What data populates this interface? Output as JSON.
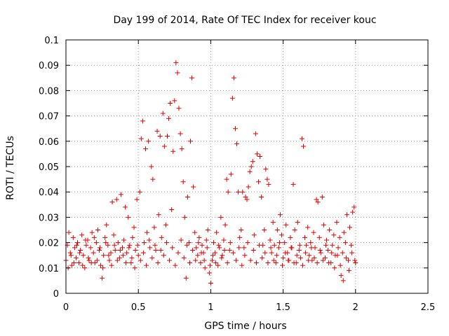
{
  "chart_data": {
    "type": "scatter",
    "title": "Day 199 of 2014, Rate Of TEC Index for receiver kouc",
    "xlabel": "GPS time / hours",
    "ylabel": "ROTI / TECUs",
    "xlim": [
      0,
      2.5
    ],
    "ylim": [
      0,
      0.1
    ],
    "x_ticks": [
      "0",
      "0.5",
      "1",
      "1.5",
      "2",
      "2.5"
    ],
    "y_ticks": [
      "0",
      "0.01",
      "0.02",
      "0.03",
      "0.04",
      "0.05",
      "0.06",
      "0.07",
      "0.08",
      "0.09",
      "0.1"
    ],
    "grid": true,
    "marker": "+",
    "color": "#e00000",
    "series": [
      {
        "points": [
          [
            0.0,
            0.013
          ],
          [
            0.01,
            0.019
          ],
          [
            0.02,
            0.024
          ],
          [
            0.03,
            0.016
          ],
          [
            0.04,
            0.011
          ],
          [
            0.05,
            0.022
          ],
          [
            0.06,
            0.018
          ],
          [
            0.07,
            0.014
          ],
          [
            0.08,
            0.02
          ],
          [
            0.09,
            0.012
          ],
          [
            0.1,
            0.017
          ],
          [
            0.11,
            0.023
          ],
          [
            0.12,
            0.015
          ],
          [
            0.13,
            0.01
          ],
          [
            0.14,
            0.019
          ],
          [
            0.15,
            0.021
          ],
          [
            0.16,
            0.013
          ],
          [
            0.17,
            0.018
          ],
          [
            0.18,
            0.024
          ],
          [
            0.19,
            0.016
          ],
          [
            0.2,
            0.012
          ],
          [
            0.21,
            0.02
          ],
          [
            0.22,
            0.025
          ],
          [
            0.23,
            0.017
          ],
          [
            0.24,
            0.011
          ],
          [
            0.25,
            0.006
          ],
          [
            0.26,
            0.015
          ],
          [
            0.27,
            0.022
          ],
          [
            0.28,
            0.027
          ],
          [
            0.29,
            0.019
          ],
          [
            0.3,
            0.013
          ],
          [
            0.31,
            0.016
          ],
          [
            0.32,
            0.036
          ],
          [
            0.33,
            0.023
          ],
          [
            0.34,
            0.017
          ],
          [
            0.35,
            0.037
          ],
          [
            0.36,
            0.02
          ],
          [
            0.37,
            0.014
          ],
          [
            0.38,
            0.039
          ],
          [
            0.39,
            0.018
          ],
          [
            0.4,
            0.021
          ],
          [
            0.41,
            0.034
          ],
          [
            0.42,
            0.016
          ],
          [
            0.43,
            0.03
          ],
          [
            0.44,
            0.019
          ],
          [
            0.45,
            0.012
          ],
          [
            0.46,
            0.022
          ],
          [
            0.47,
            0.026
          ],
          [
            0.48,
            0.017
          ],
          [
            0.49,
            0.037
          ],
          [
            0.5,
            0.015
          ],
          [
            0.51,
            0.04
          ],
          [
            0.52,
            0.061
          ],
          [
            0.53,
            0.068
          ],
          [
            0.54,
            0.02
          ],
          [
            0.55,
            0.057
          ],
          [
            0.56,
            0.024
          ],
          [
            0.57,
            0.06
          ],
          [
            0.58,
            0.018
          ],
          [
            0.59,
            0.05
          ],
          [
            0.6,
            0.045
          ],
          [
            0.61,
            0.026
          ],
          [
            0.62,
            0.017
          ],
          [
            0.63,
            0.064
          ],
          [
            0.64,
            0.031
          ],
          [
            0.65,
            0.062
          ],
          [
            0.66,
            0.022
          ],
          [
            0.67,
            0.071
          ],
          [
            0.68,
            0.058
          ],
          [
            0.69,
            0.027
          ],
          [
            0.7,
            0.062
          ],
          [
            0.71,
            0.069
          ],
          [
            0.72,
            0.075
          ],
          [
            0.73,
            0.033
          ],
          [
            0.74,
            0.056
          ],
          [
            0.75,
            0.076
          ],
          [
            0.76,
            0.091
          ],
          [
            0.77,
            0.087
          ],
          [
            0.78,
            0.073
          ],
          [
            0.79,
            0.063
          ],
          [
            0.8,
            0.057
          ],
          [
            0.81,
            0.044
          ],
          [
            0.82,
            0.03
          ],
          [
            0.83,
            0.006
          ],
          [
            0.84,
            0.038
          ],
          [
            0.85,
            0.02
          ],
          [
            0.86,
            0.06
          ],
          [
            0.87,
            0.085
          ],
          [
            0.88,
            0.042
          ],
          [
            0.89,
            0.024
          ],
          [
            0.9,
            0.018
          ],
          [
            0.91,
            0.015
          ],
          [
            0.92,
            0.022
          ],
          [
            0.93,
            0.012
          ],
          [
            0.94,
            0.019
          ],
          [
            0.95,
            0.016
          ],
          [
            0.96,
            0.01
          ],
          [
            0.97,
            0.021
          ],
          [
            0.98,
            0.025
          ],
          [
            0.99,
            0.008
          ],
          [
            1.0,
            0.004
          ],
          [
            1.01,
            0.013
          ],
          [
            1.02,
            0.02
          ],
          [
            1.03,
            0.016
          ],
          [
            1.04,
            0.024
          ],
          [
            1.05,
            0.011
          ],
          [
            1.06,
            0.018
          ],
          [
            1.07,
            0.03
          ],
          [
            1.08,
            0.015
          ],
          [
            1.09,
            0.021
          ],
          [
            1.1,
            0.027
          ],
          [
            1.11,
            0.045
          ],
          [
            1.12,
            0.04
          ],
          [
            1.13,
            0.017
          ],
          [
            1.14,
            0.047
          ],
          [
            1.15,
            0.077
          ],
          [
            1.16,
            0.085
          ],
          [
            1.17,
            0.065
          ],
          [
            1.18,
            0.059
          ],
          [
            1.19,
            0.04
          ],
          [
            1.2,
            0.022
          ],
          [
            1.21,
            0.025
          ],
          [
            1.22,
            0.04
          ],
          [
            1.23,
            0.018
          ],
          [
            1.24,
            0.038
          ],
          [
            1.25,
            0.037
          ],
          [
            1.26,
            0.042
          ],
          [
            1.27,
            0.048
          ],
          [
            1.28,
            0.05
          ],
          [
            1.29,
            0.052
          ],
          [
            1.3,
            0.023
          ],
          [
            1.31,
            0.063
          ],
          [
            1.32,
            0.055
          ],
          [
            1.33,
            0.044
          ],
          [
            1.34,
            0.054
          ],
          [
            1.35,
            0.038
          ],
          [
            1.36,
            0.019
          ],
          [
            1.37,
            0.025
          ],
          [
            1.38,
            0.049
          ],
          [
            1.39,
            0.045
          ],
          [
            1.4,
            0.043
          ],
          [
            1.41,
            0.021
          ],
          [
            1.42,
            0.016
          ],
          [
            1.43,
            0.028
          ],
          [
            1.44,
            0.019
          ],
          [
            1.45,
            0.012
          ],
          [
            1.46,
            0.025
          ],
          [
            1.47,
            0.018
          ],
          [
            1.48,
            0.031
          ],
          [
            1.49,
            0.023
          ],
          [
            1.5,
            0.014
          ],
          [
            1.51,
            0.02
          ],
          [
            1.52,
            0.027
          ],
          [
            1.53,
            0.016
          ],
          [
            1.54,
            0.013
          ],
          [
            1.55,
            0.022
          ],
          [
            1.56,
            0.018
          ],
          [
            1.57,
            0.043
          ],
          [
            1.58,
            0.025
          ],
          [
            1.59,
            0.012
          ],
          [
            1.6,
            0.028
          ],
          [
            1.61,
            0.017
          ],
          [
            1.62,
            0.014
          ],
          [
            1.63,
            0.061
          ],
          [
            1.64,
            0.058
          ],
          [
            1.65,
            0.022
          ],
          [
            1.66,
            0.019
          ],
          [
            1.67,
            0.026
          ],
          [
            1.68,
            0.015
          ],
          [
            1.69,
            0.02
          ],
          [
            1.7,
            0.013
          ],
          [
            1.71,
            0.024
          ],
          [
            1.72,
            0.018
          ],
          [
            1.73,
            0.037
          ],
          [
            1.74,
            0.036
          ],
          [
            1.75,
            0.022
          ],
          [
            1.76,
            0.016
          ],
          [
            1.77,
            0.038
          ],
          [
            1.78,
            0.027
          ],
          [
            1.79,
            0.014
          ],
          [
            1.8,
            0.021
          ],
          [
            1.81,
            0.017
          ],
          [
            1.82,
            0.025
          ],
          [
            1.83,
            0.012
          ],
          [
            1.84,
            0.019
          ],
          [
            1.85,
            0.023
          ],
          [
            1.86,
            0.015
          ],
          [
            1.87,
            0.028
          ],
          [
            1.88,
            0.018
          ],
          [
            1.89,
            0.022
          ],
          [
            1.9,
            0.007
          ],
          [
            1.91,
            0.016
          ],
          [
            1.92,
            0.024
          ],
          [
            1.93,
            0.02
          ],
          [
            1.94,
            0.031
          ],
          [
            1.95,
            0.013
          ],
          [
            1.96,
            0.026
          ],
          [
            1.97,
            0.019
          ],
          [
            1.98,
            0.032
          ],
          [
            1.99,
            0.034
          ],
          [
            2.0,
            0.012
          ],
          [
            0.015,
            0.01
          ],
          [
            0.035,
            0.015
          ],
          [
            0.055,
            0.012
          ],
          [
            0.075,
            0.019
          ],
          [
            0.095,
            0.016
          ],
          [
            0.115,
            0.011
          ],
          [
            0.135,
            0.021
          ],
          [
            0.155,
            0.014
          ],
          [
            0.175,
            0.012
          ],
          [
            0.195,
            0.022
          ],
          [
            0.215,
            0.013
          ],
          [
            0.235,
            0.018
          ],
          [
            0.255,
            0.01
          ],
          [
            0.275,
            0.02
          ],
          [
            0.295,
            0.015
          ],
          [
            0.315,
            0.011
          ],
          [
            0.335,
            0.019
          ],
          [
            0.355,
            0.013
          ],
          [
            0.375,
            0.017
          ],
          [
            0.395,
            0.015
          ],
          [
            0.415,
            0.012
          ],
          [
            0.435,
            0.018
          ],
          [
            0.455,
            0.014
          ],
          [
            0.475,
            0.01
          ],
          [
            0.495,
            0.019
          ],
          [
            0.515,
            0.013
          ],
          [
            0.535,
            0.016
          ],
          [
            0.555,
            0.011
          ],
          [
            0.575,
            0.021
          ],
          [
            0.595,
            0.014
          ],
          [
            0.615,
            0.019
          ],
          [
            0.635,
            0.012
          ],
          [
            0.655,
            0.017
          ],
          [
            0.675,
            0.015
          ],
          [
            0.695,
            0.02
          ],
          [
            0.715,
            0.013
          ],
          [
            0.735,
            0.018
          ],
          [
            0.755,
            0.011
          ],
          [
            0.775,
            0.016
          ],
          [
            0.795,
            0.021
          ],
          [
            0.815,
            0.014
          ],
          [
            0.835,
            0.019
          ],
          [
            0.855,
            0.012
          ],
          [
            0.875,
            0.017
          ],
          [
            0.895,
            0.013
          ],
          [
            0.915,
            0.02
          ],
          [
            0.935,
            0.016
          ],
          [
            0.955,
            0.013
          ],
          [
            0.975,
            0.018
          ],
          [
            0.995,
            0.011
          ],
          [
            1.015,
            0.015
          ],
          [
            1.035,
            0.012
          ],
          [
            1.055,
            0.019
          ],
          [
            1.075,
            0.014
          ],
          [
            1.095,
            0.017
          ],
          [
            1.115,
            0.012
          ],
          [
            1.135,
            0.02
          ],
          [
            1.155,
            0.016
          ],
          [
            1.175,
            0.013
          ],
          [
            1.195,
            0.018
          ],
          [
            1.215,
            0.011
          ],
          [
            1.235,
            0.015
          ],
          [
            1.255,
            0.02
          ],
          [
            1.275,
            0.013
          ],
          [
            1.295,
            0.017
          ],
          [
            1.315,
            0.012
          ],
          [
            1.335,
            0.019
          ],
          [
            1.355,
            0.014
          ],
          [
            1.375,
            0.016
          ],
          [
            1.395,
            0.012
          ],
          [
            1.415,
            0.018
          ],
          [
            1.435,
            0.013
          ],
          [
            1.455,
            0.015
          ],
          [
            1.475,
            0.02
          ],
          [
            1.495,
            0.011
          ],
          [
            1.515,
            0.016
          ],
          [
            1.535,
            0.013
          ],
          [
            1.555,
            0.018
          ],
          [
            1.575,
            0.012
          ],
          [
            1.595,
            0.015
          ],
          [
            1.615,
            0.019
          ],
          [
            1.635,
            0.011
          ],
          [
            1.655,
            0.016
          ],
          [
            1.675,
            0.013
          ],
          [
            1.695,
            0.018
          ],
          [
            1.715,
            0.014
          ],
          [
            1.735,
            0.012
          ],
          [
            1.755,
            0.017
          ],
          [
            1.775,
            0.013
          ],
          [
            1.795,
            0.019
          ],
          [
            1.815,
            0.012
          ],
          [
            1.835,
            0.016
          ],
          [
            1.855,
            0.01
          ],
          [
            1.875,
            0.015
          ],
          [
            1.895,
            0.011
          ],
          [
            1.915,
            0.005
          ],
          [
            1.935,
            0.014
          ],
          [
            1.955,
            0.009
          ],
          [
            1.975,
            0.016
          ],
          [
            1.995,
            0.013
          ]
        ]
      }
    ]
  }
}
